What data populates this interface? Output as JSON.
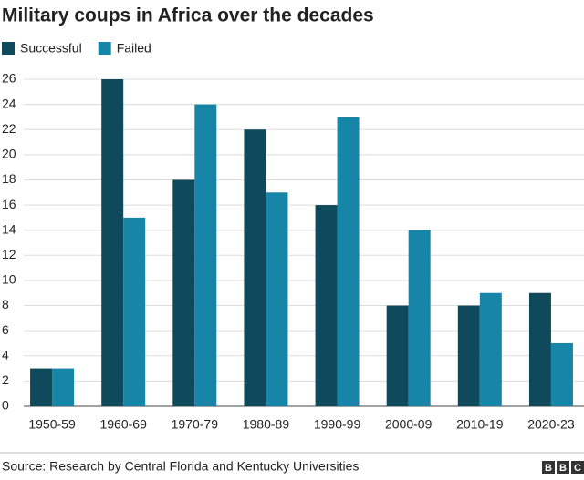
{
  "chart_data": {
    "type": "bar",
    "title": "Military coups in Africa over the decades",
    "categories": [
      "1950-59",
      "1960-69",
      "1970-79",
      "1980-89",
      "1990-99",
      "2000-09",
      "2010-19",
      "2020-23"
    ],
    "series": [
      {
        "name": "Successful",
        "color": "#0e4a5c",
        "values": [
          3,
          26,
          18,
          22,
          16,
          8,
          8,
          9
        ]
      },
      {
        "name": "Failed",
        "color": "#1785a8",
        "values": [
          3,
          15,
          24,
          17,
          23,
          14,
          9,
          5
        ]
      }
    ],
    "ylim": [
      0,
      26
    ],
    "yticks": [
      0,
      2,
      4,
      6,
      8,
      10,
      12,
      14,
      16,
      18,
      20,
      22,
      24,
      26
    ],
    "grid": true,
    "source": "Source: Research by Central Florida and Kentucky Universities",
    "logo": [
      "B",
      "B",
      "C"
    ]
  }
}
